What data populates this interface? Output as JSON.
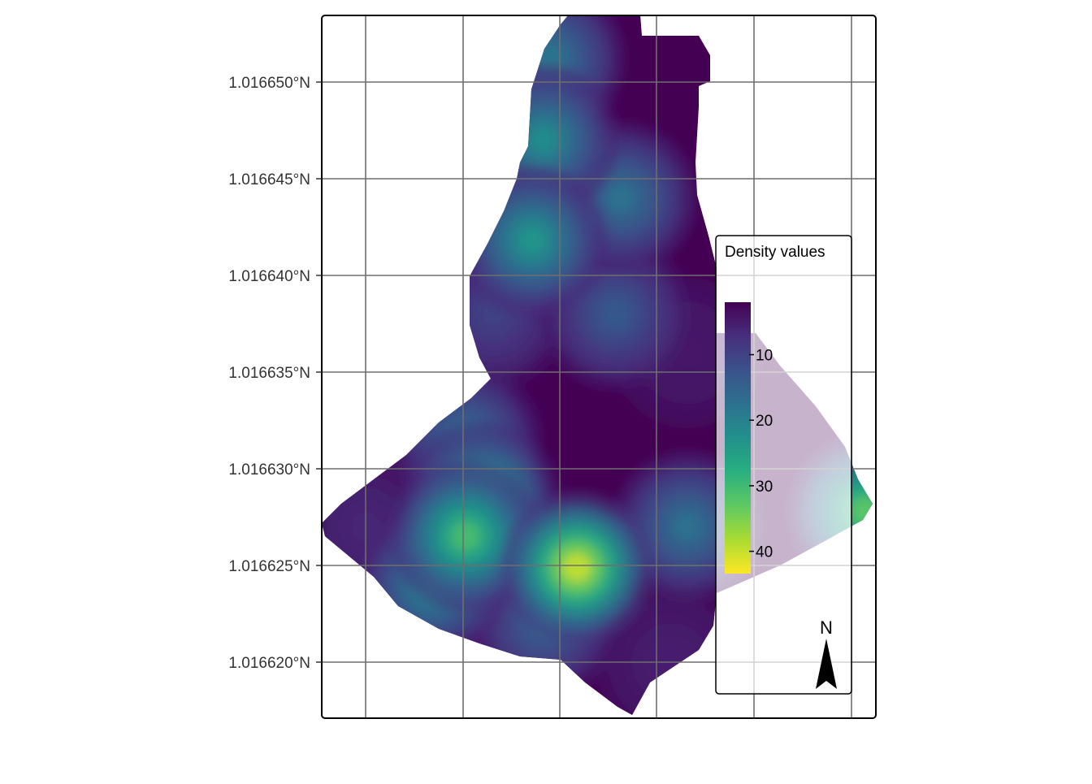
{
  "chart_data": {
    "type": "heatmap",
    "title": "",
    "xlabel": "",
    "ylabel": "",
    "y_axis": {
      "tick_labels": [
        "1.016650°N",
        "1.016645°N",
        "1.016640°N",
        "1.016635°N",
        "1.016630°N",
        "1.016625°N",
        "1.016620°N"
      ],
      "tick_values": [
        1.01665,
        1.016645,
        1.01664,
        1.016635,
        1.01663,
        1.016625,
        1.01662
      ],
      "range": [
        1.016617,
        1.016653
      ]
    },
    "grid": true,
    "colorscale": "viridis (reversed)",
    "color_range": [
      0,
      45
    ],
    "legend": {
      "title": "Density values",
      "ticks": [
        10,
        20,
        30,
        40
      ],
      "tick_labels": [
        "10",
        "20",
        "30",
        "40"
      ],
      "placement": "right inside"
    },
    "hotspots": [
      {
        "x": 0.46,
        "y": 1.0166249,
        "value": 42
      },
      {
        "x": 0.26,
        "y": 1.0166265,
        "value": 32
      },
      {
        "x": 0.29,
        "y": 1.0166285,
        "value": 26
      },
      {
        "x": 0.38,
        "y": 1.0166418,
        "value": 24
      },
      {
        "x": 0.4,
        "y": 1.016647,
        "value": 22
      },
      {
        "x": 0.41,
        "y": 1.0166512,
        "value": 18
      },
      {
        "x": 0.54,
        "y": 1.016644,
        "value": 17
      },
      {
        "x": 0.2,
        "y": 1.016624,
        "value": 21
      },
      {
        "x": 0.66,
        "y": 1.016627,
        "value": 17
      },
      {
        "x": 0.26,
        "y": 1.0166315,
        "value": 16
      },
      {
        "x": 0.4,
        "y": 1.016622,
        "value": 14
      },
      {
        "x": 0.53,
        "y": 1.016638,
        "value": 13
      },
      {
        "x": 0.31,
        "y": 1.016638,
        "value": 9
      },
      {
        "x": 0.08,
        "y": 1.016627,
        "value": 5
      },
      {
        "x": 0.66,
        "y": 1.016636,
        "value": 3
      },
      {
        "x": 0.63,
        "y": 1.01662,
        "value": 4
      },
      {
        "x": 0.98,
        "y": 1.0166278,
        "value": 34
      }
    ]
  },
  "north_arrow": {
    "label": "N"
  },
  "colors": {
    "panel_border": "#000000",
    "grid_line": "#6e6e6e",
    "legend_overlay": "#ffffff"
  }
}
